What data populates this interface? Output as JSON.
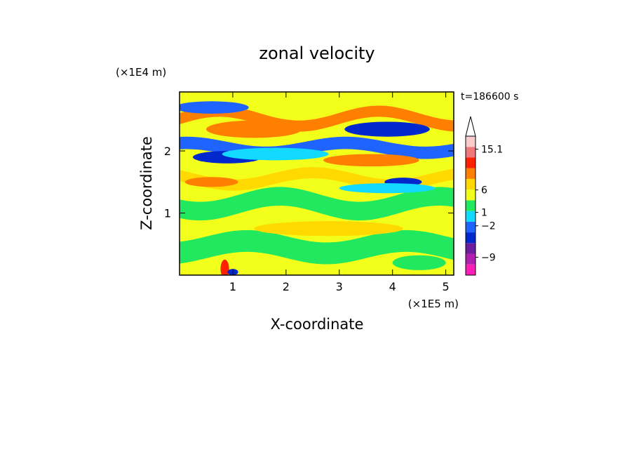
{
  "chart_data": {
    "type": "heatmap",
    "title": "zonal velocity",
    "xlabel": "X-coordinate",
    "ylabel": "Z-coordinate",
    "x_unit": "(×1E5 m)",
    "y_unit": "(×1E4 m)",
    "time_label": "t=186600 s",
    "xlim": [
      0,
      5.15
    ],
    "ylim": [
      0,
      2.95
    ],
    "x_ticks": [
      {
        "value": 1,
        "label": "1"
      },
      {
        "value": 2,
        "label": "2"
      },
      {
        "value": 3,
        "label": "3"
      },
      {
        "value": 4,
        "label": "4"
      },
      {
        "value": 5,
        "label": "5"
      }
    ],
    "y_ticks": [
      {
        "value": 1,
        "label": "1"
      },
      {
        "value": 2,
        "label": "2"
      }
    ],
    "colorbar": {
      "top_arrow_color": "#ffffff",
      "levels": [
        {
          "color": "#ff1fb7"
        },
        {
          "color": "#b01fb0"
        },
        {
          "color": "#6b1f9f"
        },
        {
          "color": "#0028cc"
        },
        {
          "color": "#1f64ff"
        },
        {
          "color": "#12d9ff"
        },
        {
          "color": "#22e860"
        },
        {
          "color": "#f2ff1a"
        },
        {
          "color": "#ffd900"
        },
        {
          "color": "#ff7f00"
        },
        {
          "color": "#ff2000"
        },
        {
          "color": "#f0787a"
        },
        {
          "color": "#f8cccd"
        }
      ],
      "labels": [
        {
          "text": "15.1",
          "value": 15.1
        },
        {
          "text": "6",
          "value": 6
        },
        {
          "text": "1",
          "value": 1
        },
        {
          "text": "−2",
          "value": -2
        },
        {
          "text": "−9",
          "value": -9
        }
      ]
    },
    "bands": [
      {
        "color": "#ff7f00",
        "x0": 0,
        "x1": 5.15,
        "z_center": 2.52,
        "z_amp": 0.12,
        "thick": 0.18
      },
      {
        "color": "#1f64ff",
        "x0": 0,
        "x1": 5.15,
        "z_center": 2.05,
        "z_amp": 0.08,
        "thick": 0.2
      },
      {
        "color": "#ffd900",
        "x0": 0,
        "x1": 5.15,
        "z_center": 1.55,
        "z_amp": 0.1,
        "thick": 0.18
      },
      {
        "color": "#22e860",
        "x0": 0,
        "x1": 5.15,
        "z_center": 1.15,
        "z_amp": 0.12,
        "thick": 0.3
      },
      {
        "color": "#22e860",
        "x0": 0,
        "x1": 5.15,
        "z_center": 0.45,
        "z_amp": 0.1,
        "thick": 0.35
      }
    ],
    "features": [
      {
        "color": "#0028cc",
        "x": 3.9,
        "z": 2.35,
        "rx": 0.8,
        "rz": 0.12
      },
      {
        "color": "#0028cc",
        "x": 0.9,
        "z": 1.9,
        "rx": 0.65,
        "rz": 0.1
      },
      {
        "color": "#ff7f00",
        "x": 1.4,
        "z": 2.35,
        "rx": 0.9,
        "rz": 0.14
      },
      {
        "color": "#1f64ff",
        "x": 0.6,
        "z": 2.7,
        "rx": 0.7,
        "rz": 0.1
      },
      {
        "color": "#0028cc",
        "x": 4.2,
        "z": 1.5,
        "rx": 0.35,
        "rz": 0.07
      },
      {
        "color": "#ff7f00",
        "x": 0.6,
        "z": 1.5,
        "rx": 0.5,
        "rz": 0.08
      },
      {
        "color": "#ff7f00",
        "x": 3.6,
        "z": 1.85,
        "rx": 0.9,
        "rz": 0.1
      },
      {
        "color": "#ffd900",
        "x": 2.8,
        "z": 0.75,
        "rx": 1.4,
        "rz": 0.12
      },
      {
        "color": "#12d9ff",
        "x": 1.8,
        "z": 1.95,
        "rx": 1.0,
        "rz": 0.1
      },
      {
        "color": "#12d9ff",
        "x": 3.9,
        "z": 1.4,
        "rx": 0.9,
        "rz": 0.08
      },
      {
        "color": "#22e860",
        "x": 4.5,
        "z": 0.2,
        "rx": 0.5,
        "rz": 0.12
      },
      {
        "color": "#ff2000",
        "x": 0.85,
        "z": 0.1,
        "rx": 0.08,
        "rz": 0.15
      },
      {
        "color": "#0028cc",
        "x": 1.0,
        "z": 0.05,
        "rx": 0.1,
        "rz": 0.05
      }
    ]
  }
}
